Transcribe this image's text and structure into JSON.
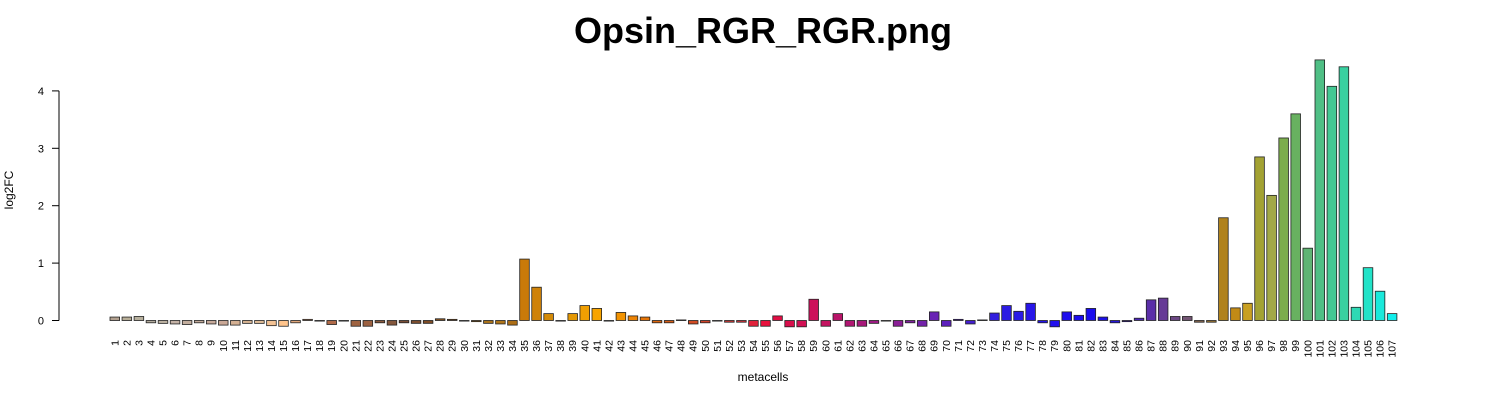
{
  "chart_data": {
    "type": "bar",
    "title": "Opsin_RGR_RGR.png",
    "xlabel": "metacells",
    "ylabel": "log2FC",
    "ylim": [
      -0.05,
      4.5
    ],
    "yticks": [
      0,
      1,
      2,
      3,
      4
    ],
    "grid": false,
    "categories": [
      "1",
      "2",
      "3",
      "4",
      "5",
      "6",
      "7",
      "8",
      "9",
      "10",
      "11",
      "12",
      "13",
      "14",
      "15",
      "16",
      "17",
      "18",
      "19",
      "20",
      "21",
      "22",
      "23",
      "24",
      "25",
      "26",
      "27",
      "28",
      "29",
      "30",
      "31",
      "32",
      "33",
      "34",
      "35",
      "36",
      "37",
      "38",
      "39",
      "40",
      "41",
      "42",
      "43",
      "44",
      "45",
      "46",
      "47",
      "48",
      "49",
      "50",
      "51",
      "52",
      "53",
      "54",
      "55",
      "56",
      "57",
      "58",
      "59",
      "60",
      "61",
      "62",
      "63",
      "64",
      "65",
      "66",
      "67",
      "68",
      "69",
      "70",
      "71",
      "72",
      "73",
      "74",
      "75",
      "76",
      "77",
      "78",
      "79",
      "80",
      "81",
      "82",
      "83",
      "84",
      "85",
      "86",
      "87",
      "88",
      "89",
      "90",
      "91",
      "92",
      "93",
      "94",
      "95",
      "96",
      "97",
      "98",
      "99",
      "100",
      "101",
      "102",
      "103",
      "104",
      "105",
      "106",
      "107"
    ],
    "values": [
      0.06,
      0.06,
      0.07,
      -0.04,
      -0.05,
      -0.06,
      -0.07,
      -0.04,
      -0.06,
      -0.08,
      -0.08,
      -0.05,
      -0.05,
      -0.09,
      -0.1,
      -0.04,
      0.02,
      0.0,
      -0.07,
      0.0,
      -0.1,
      -0.1,
      -0.04,
      -0.08,
      -0.04,
      -0.05,
      -0.05,
      0.03,
      0.02,
      -0.01,
      -0.02,
      -0.05,
      -0.06,
      -0.08,
      1.07,
      0.58,
      0.12,
      0.0,
      0.12,
      0.26,
      0.21,
      0.0,
      0.14,
      0.08,
      0.06,
      -0.04,
      -0.04,
      0.01,
      -0.06,
      -0.04,
      -0.01,
      -0.03,
      -0.03,
      -0.1,
      -0.1,
      0.08,
      -0.11,
      -0.11,
      0.37,
      -0.1,
      0.12,
      -0.1,
      -0.1,
      -0.05,
      0.0,
      -0.1,
      -0.04,
      -0.1,
      0.15,
      -0.1,
      0.02,
      -0.06,
      0.01,
      0.13,
      0.26,
      0.16,
      0.3,
      -0.04,
      -0.11,
      0.15,
      0.09,
      0.21,
      0.06,
      -0.04,
      -0.02,
      0.04,
      0.36,
      0.39,
      0.07,
      0.07,
      -0.03,
      -0.03,
      1.79,
      0.22,
      0.3,
      2.85,
      2.18,
      3.18,
      3.6,
      1.26,
      4.54,
      4.08,
      4.42,
      0.23,
      0.92,
      0.51,
      0.12
    ],
    "colors": [
      "#b3a190",
      "#b8ae97",
      "#b7b09d",
      "#b2ab9d",
      "#bdb2a2",
      "#c4b2a6",
      "#c3ae9e",
      "#c2aa9a",
      "#c7aa9a",
      "#caa896",
      "#d4b093",
      "#d6b391",
      "#debb96",
      "#f3c294",
      "#ffc48c",
      "#e0a67a",
      "#c88a62",
      "#b9784e",
      "#b06a48",
      "#a35d41",
      "#9e6240",
      "#9c6141",
      "#8a5a3e",
      "#84573c",
      "#7a4e36",
      "#7c4d2e",
      "#7e4c26",
      "#8a5523",
      "#9a5f20",
      "#a46a1f",
      "#a8701c",
      "#aa731b",
      "#b07519",
      "#ad6e15",
      "#c97a0a",
      "#cf8208",
      "#d38a08",
      "#d99106",
      "#e49804",
      "#f09f02",
      "#f8a400",
      "#f9a002",
      "#f29302",
      "#ec8304",
      "#e57407",
      "#de670e",
      "#d65d16",
      "#d2551c",
      "#d34c24",
      "#d2432a",
      "#d03d30",
      "#d03936",
      "#d3333a",
      "#e0213a",
      "#e8113d",
      "#e00e44",
      "#d80f4c",
      "#d11054",
      "#cd105a",
      "#c41461",
      "#b91569",
      "#b11672",
      "#a7187a",
      "#9e1b84",
      "#941d8d",
      "#8a1f96",
      "#80229f",
      "#7322a9",
      "#6822b4",
      "#5d20bd",
      "#501fc7",
      "#4420cf",
      "#3a20d7",
      "#321ede",
      "#2c1be3",
      "#2a1ae6",
      "#2816e8",
      "#2513ea",
      "#2210ec",
      "#1f0eed",
      "#1b0cee",
      "#180bee",
      "#1c10e6",
      "#2816d8",
      "#3a1ec7",
      "#4c26b8",
      "#5a2ea8",
      "#663a96",
      "#6c4884",
      "#735574",
      "#8a6a52",
      "#9c7834",
      "#b0821c",
      "#c28a16",
      "#c9a022",
      "#a3a233",
      "#a2a847",
      "#7cad4d",
      "#68b160",
      "#5fb474",
      "#4fbf85",
      "#44c893",
      "#38d0a0",
      "#2ed9b4",
      "#22e3c8",
      "#1ae9db",
      "#12eeeb"
    ]
  }
}
